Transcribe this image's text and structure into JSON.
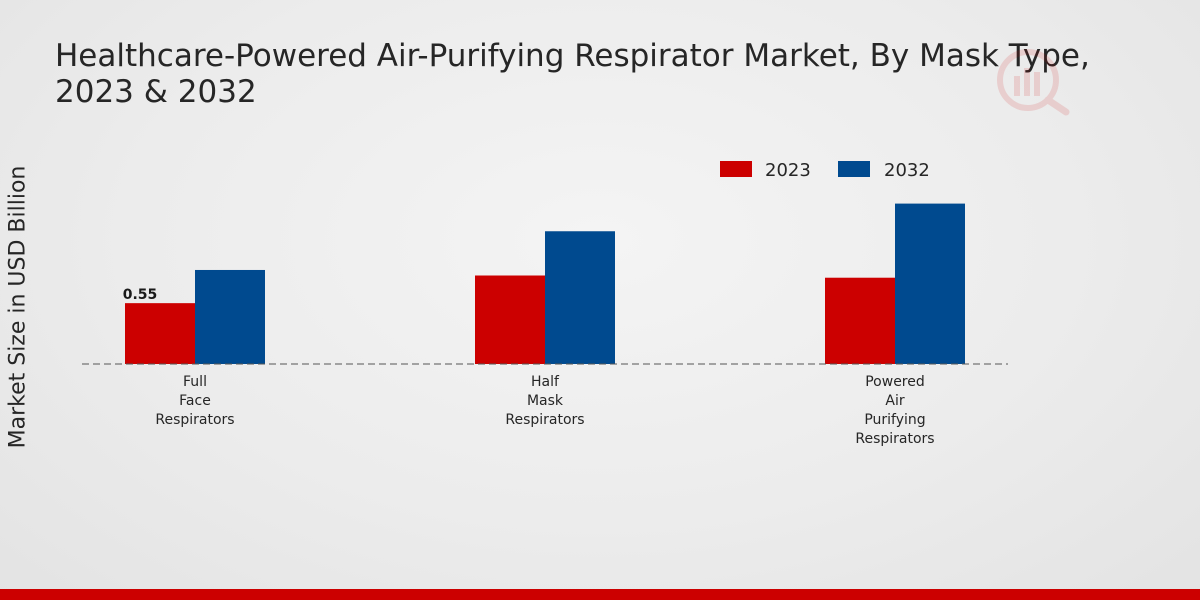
{
  "chart_data": {
    "type": "bar",
    "title": "Healthcare-Powered Air-Purifying Respirator Market, By Mask Type, 2023 & 2032",
    "xlabel": "",
    "ylabel": "Market Size in USD Billion",
    "categories": [
      [
        "Full",
        "Face",
        "Respirators"
      ],
      [
        "Half",
        "Mask",
        "Respirators"
      ],
      [
        "Powered",
        "Air",
        "Purifying",
        "Respirators"
      ]
    ],
    "series": [
      {
        "name": "2023",
        "color": "#cc0000",
        "values": [
          0.55,
          0.8,
          0.78
        ]
      },
      {
        "name": "2032",
        "color": "#004a8f",
        "values": [
          0.85,
          1.2,
          1.45
        ]
      }
    ],
    "data_labels": [
      {
        "series": 0,
        "index": 0,
        "text": "0.55"
      }
    ],
    "ylim": [
      0,
      3.2
    ],
    "grid": false,
    "legend": "top-right"
  }
}
